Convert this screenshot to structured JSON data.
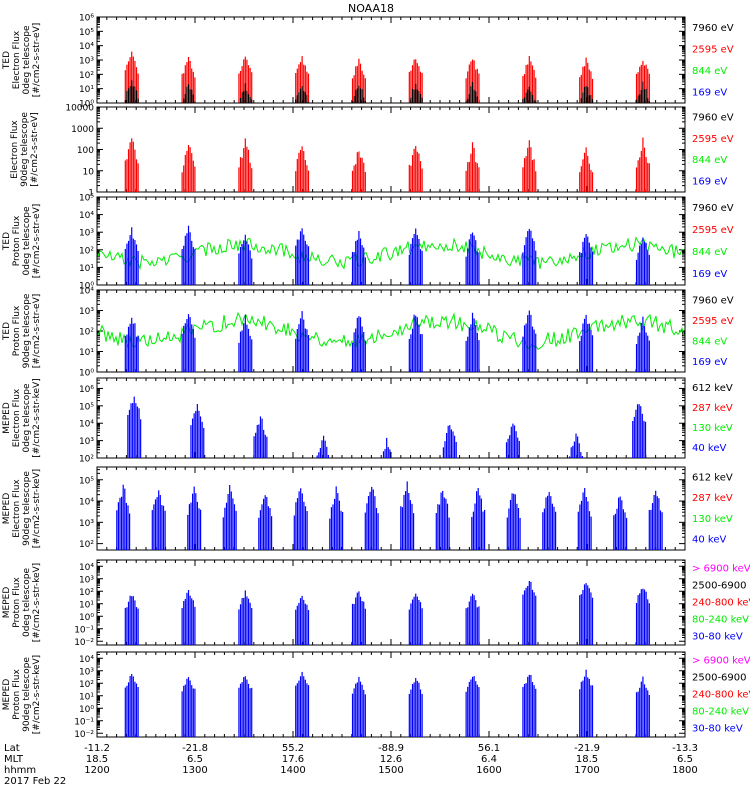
{
  "title": "NOAA18",
  "colors": {
    "black": "#000000",
    "red": "#ff0000",
    "green": "#00ee00",
    "blue": "#0000ff",
    "magenta": "#ff00ff"
  },
  "chart_data": [
    {
      "type": "scatter",
      "ylabel": [
        "TED",
        "Electron Flux",
        "0deg telescope",
        "[#/cm2-s-str-eV]"
      ],
      "yticks": [
        {
          "v": 0,
          "t": "10⁰"
        },
        {
          "v": 1,
          "t": "10¹"
        },
        {
          "v": 2,
          "t": "10²"
        },
        {
          "v": 3,
          "t": "10³"
        },
        {
          "v": 4,
          "t": "10⁴"
        },
        {
          "v": 5,
          "t": "10⁵"
        },
        {
          "v": 6,
          "t": "10⁶"
        }
      ],
      "ylim_log": [
        0,
        6
      ],
      "legend": [
        {
          "text": "7960 eV",
          "color": "black"
        },
        {
          "text": "2595 eV",
          "color": "red"
        },
        {
          "text": "844 eV",
          "color": "green"
        },
        {
          "text": "169 eV",
          "color": "blue"
        }
      ],
      "series": [
        {
          "name": "2595 eV",
          "peaks_log": [
            3.6,
            3.3,
            3.4,
            3.3,
            3.2,
            3.4,
            3.3,
            3.3,
            3.2,
            3.3
          ]
        },
        {
          "name": "7960 eV",
          "peaks_log": [
            1.8,
            1.6,
            1.5,
            1.5,
            1.6,
            1.6,
            1.5,
            1.5,
            1.5,
            1.6
          ]
        }
      ]
    },
    {
      "type": "scatter",
      "ylabel": [
        "Electron Flux",
        "90deg telescope",
        "[#/cm2-s-str-eV]"
      ],
      "yticks": [
        {
          "v": 0,
          "t": "1"
        },
        {
          "v": 1,
          "t": "10"
        },
        {
          "v": 2,
          "t": "100"
        },
        {
          "v": 3,
          "t": "1000"
        },
        {
          "v": 4,
          "t": "10000"
        }
      ],
      "ylim_log": [
        0,
        4
      ],
      "legend": [
        {
          "text": "7960 eV",
          "color": "black"
        },
        {
          "text": "2595 eV",
          "color": "red"
        },
        {
          "text": "844 eV",
          "color": "green"
        },
        {
          "text": "169 eV",
          "color": "blue"
        }
      ],
      "series": [
        {
          "name": "2595 eV",
          "peaks_log": [
            2.8,
            2.5,
            2.6,
            2.5,
            2.3,
            2.5,
            2.4,
            2.5,
            2.3,
            2.6
          ]
        }
      ]
    },
    {
      "type": "scatter",
      "ylabel": [
        "TED",
        "Proton Flux",
        "0deg telescope",
        "[#/cm2-s-str-eV]"
      ],
      "yticks": [
        {
          "v": 0,
          "t": "10⁰"
        },
        {
          "v": 1,
          "t": "10¹"
        },
        {
          "v": 2,
          "t": "10²"
        },
        {
          "v": 3,
          "t": "10³"
        },
        {
          "v": 4,
          "t": "10⁴"
        },
        {
          "v": 5,
          "t": "10⁵"
        }
      ],
      "ylim_log": [
        0,
        5
      ],
      "legend": [
        {
          "text": "7960 eV",
          "color": "black"
        },
        {
          "text": "2595 eV",
          "color": "red"
        },
        {
          "text": "844 eV",
          "color": "green"
        },
        {
          "text": "169 eV",
          "color": "blue"
        }
      ],
      "series": [
        {
          "name": "844 eV",
          "baseline_log": 1.8
        },
        {
          "name": "169 eV",
          "peaks_log": [
            3.3,
            3.4,
            3.1,
            3.5,
            3.1,
            3.3,
            3.2,
            3.4,
            3.1,
            3.0
          ]
        }
      ]
    },
    {
      "type": "scatter",
      "ylabel": [
        "TED",
        "Proton Flux",
        "90deg telescope",
        "[#/cm2-s-str-eV]"
      ],
      "yticks": [
        {
          "v": 0,
          "t": "10⁰"
        },
        {
          "v": 1,
          "t": "10¹"
        },
        {
          "v": 2,
          "t": "10²"
        },
        {
          "v": 3,
          "t": "10³"
        },
        {
          "v": 4,
          "t": "10⁴"
        }
      ],
      "ylim_log": [
        0,
        4
      ],
      "legend": [
        {
          "text": "7960 eV",
          "color": "black"
        },
        {
          "text": "2595 eV",
          "color": "red"
        },
        {
          "text": "844 eV",
          "color": "green"
        },
        {
          "text": "169 eV",
          "color": "blue"
        }
      ],
      "series": [
        {
          "name": "844 eV",
          "baseline_log": 2.0
        },
        {
          "name": "169 eV",
          "peaks_log": [
            3.0,
            3.2,
            3.0,
            3.1,
            3.0,
            3.1,
            3.0,
            3.2,
            3.0,
            2.9
          ]
        }
      ]
    },
    {
      "type": "scatter",
      "ylabel": [
        "MEPED",
        "Electron Flux",
        "0deg telescope",
        "[#/cm2-s-str-keV]"
      ],
      "yticks": [
        {
          "v": 2,
          "t": "10²"
        },
        {
          "v": 3,
          "t": "10³"
        },
        {
          "v": 4,
          "t": "10⁴"
        },
        {
          "v": 5,
          "t": "10⁵"
        },
        {
          "v": 6,
          "t": "10⁶"
        }
      ],
      "ylim_log": [
        2,
        6.6
      ],
      "legend": [
        {
          "text": "612 keV",
          "color": "black"
        },
        {
          "text": "287 keV",
          "color": "red"
        },
        {
          "text": "130 keV",
          "color": "green"
        },
        {
          "text": "40 keV",
          "color": "blue"
        }
      ],
      "series": [
        {
          "name": "40 keV",
          "peaks_log": [
            5.8,
            5.2,
            4.6,
            3.4,
            3.2,
            4.2,
            4.2,
            3.6,
            5.4
          ]
        }
      ]
    },
    {
      "type": "scatter",
      "ylabel": [
        "MEPED",
        "Electron Flux",
        "90deg telescope",
        "[#/cm2-s-str-keV]"
      ],
      "yticks": [
        {
          "v": 2,
          "t": "10²"
        },
        {
          "v": 3,
          "t": "10³"
        },
        {
          "v": 4,
          "t": "10⁴"
        },
        {
          "v": 5,
          "t": "10⁵"
        }
      ],
      "ylim_log": [
        1.7,
        5.6
      ],
      "legend": [
        {
          "text": "612 keV",
          "color": "black"
        },
        {
          "text": "287 keV",
          "color": "red"
        },
        {
          "text": "130 keV",
          "color": "green"
        },
        {
          "text": "40 keV",
          "color": "blue"
        }
      ],
      "series": [
        {
          "name": "40 keV",
          "peaks_log": [
            4.9,
            4.8,
            4.8,
            4.8,
            4.6,
            4.9,
            4.7,
            4.9,
            5.0,
            4.8,
            4.8,
            4.7,
            4.8,
            4.8,
            4.6,
            4.8
          ]
        }
      ]
    },
    {
      "type": "scatter",
      "ylabel": [
        "MEPED",
        "Proton Flux",
        "0deg telescope",
        "[#/cm2-s-str-keV]"
      ],
      "yticks": [
        {
          "v": -2,
          "t": "10⁻²"
        },
        {
          "v": -1,
          "t": "10⁻¹"
        },
        {
          "v": 0,
          "t": "10⁰"
        },
        {
          "v": 1,
          "t": "10¹"
        },
        {
          "v": 2,
          "t": "10²"
        },
        {
          "v": 3,
          "t": "10³"
        },
        {
          "v": 4,
          "t": "10⁴"
        }
      ],
      "ylim_log": [
        -2.3,
        4.5
      ],
      "legend": [
        {
          "text": "> 6900 keV",
          "color": "magenta"
        },
        {
          "text": "2500-6900",
          "color": "black"
        },
        {
          "text": "240-800 keV",
          "color": "red"
        },
        {
          "text": "80-240 keV",
          "color": "green"
        },
        {
          "text": "30-80 keV",
          "color": "blue"
        }
      ],
      "series": [
        {
          "name": "30-80 keV",
          "peaks_log": [
            2.0,
            2.2,
            2.1,
            2.0,
            2.2,
            2.1,
            2.0,
            3.1,
            2.9,
            2.6
          ]
        }
      ]
    },
    {
      "type": "scatter",
      "ylabel": [
        "MEPED",
        "Proton Flux",
        "90deg telescope",
        "[#/cm2-s-str-keV]"
      ],
      "yticks": [
        {
          "v": -2,
          "t": "10⁻²"
        },
        {
          "v": -1,
          "t": "10⁻¹"
        },
        {
          "v": 0,
          "t": "10⁰"
        },
        {
          "v": 1,
          "t": "10¹"
        },
        {
          "v": 2,
          "t": "10²"
        },
        {
          "v": 3,
          "t": "10³"
        },
        {
          "v": 4,
          "t": "10⁴"
        }
      ],
      "ylim_log": [
        -2.3,
        4.5
      ],
      "legend": [
        {
          "text": "> 6900 keV",
          "color": "magenta"
        },
        {
          "text": "2500-6900",
          "color": "black"
        },
        {
          "text": "240-800 keV",
          "color": "red"
        },
        {
          "text": "80-240 keV",
          "color": "green"
        },
        {
          "text": "30-80 keV",
          "color": "blue"
        }
      ],
      "series": [
        {
          "name": "30-80 keV",
          "peaks_log": [
            3.0,
            2.8,
            2.9,
            3.2,
            2.6,
            2.7,
            2.9,
            3.0,
            3.1,
            2.6
          ]
        }
      ]
    }
  ],
  "xaxis": {
    "row_labels": [
      "Lat",
      "MLT",
      "hhmm"
    ],
    "date": "2017 Feb 22",
    "ticks": [
      {
        "lat": "-11.2",
        "mlt": "18.5",
        "time": "1200"
      },
      {
        "lat": "-21.8",
        "mlt": "6.5",
        "time": "1300"
      },
      {
        "lat": "55.2",
        "mlt": "17.6",
        "time": "1400"
      },
      {
        "lat": "-88.9",
        "mlt": "12.6",
        "time": "1500"
      },
      {
        "lat": "56.1",
        "mlt": "6.4",
        "time": "1600"
      },
      {
        "lat": "-21.9",
        "mlt": "18.5",
        "time": "1700"
      },
      {
        "lat": "-13.3",
        "mlt": "6.5",
        "time": "1800"
      }
    ]
  }
}
